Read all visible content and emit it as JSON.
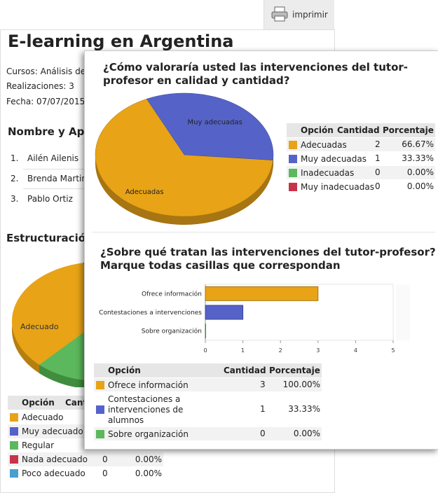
{
  "toolbar": {
    "print": "imprimir"
  },
  "report": {
    "title": "E-learning en Argentina",
    "meta": [
      "Cursos: Análisis de",
      "Realizaciones: 3",
      "Fecha: 07/07/2015"
    ],
    "participants_heading": "Nombre y Ape",
    "participants": [
      {
        "number": "1.",
        "name": "Ailén Ailenis"
      },
      {
        "number": "2.",
        "name": "Brenda Martine"
      },
      {
        "number": "3.",
        "name": "Pablo Ortiz"
      }
    ],
    "section_heading": "Estructuración",
    "pie_label": "Adecuado",
    "table": {
      "header": [
        "Opción",
        "Cant"
      ],
      "rows": [
        {
          "label": "Adecuado",
          "color": "#e8a317"
        },
        {
          "label": "Muy adecuado",
          "color": "#5563c8"
        },
        {
          "label": "Regular",
          "color": "#5cb85c"
        },
        {
          "label": "Nada adecuado",
          "count": 0,
          "percent": "0.00%",
          "color": "#c8334a"
        },
        {
          "label": "Poco adecuado",
          "count": 0,
          "percent": "0.00%",
          "color": "#4a9fd0"
        }
      ]
    }
  },
  "popup": {
    "questions": [
      {
        "title": "¿Cómo valoraría usted las intervenciones del tutor-profesor en calidad y cantidad?",
        "chart": {
          "type": "pie"
        },
        "table": {
          "header": [
            "Opción",
            "Cantidad",
            "Porcentaje"
          ],
          "rows": [
            {
              "label": "Adecuadas",
              "count": 2,
              "percent": "66.67%",
              "color": "#e8a317"
            },
            {
              "label": "Muy adecuadas",
              "count": 1,
              "percent": "33.33%",
              "color": "#5563c8"
            },
            {
              "label": "Inadecuadas",
              "count": 0,
              "percent": "0.00%",
              "color": "#5cb85c"
            },
            {
              "label": "Muy inadecuadas",
              "count": 0,
              "percent": "0.00%",
              "color": "#c8334a"
            }
          ]
        }
      },
      {
        "title": "¿Sobre qué tratan las intervenciones del tutor-profesor? Marque todas casillas que correspondan",
        "chart": {
          "type": "bar",
          "categories": [
            "Ofrece información",
            "Contestaciones a intervenciones",
            "Sobre organización"
          ],
          "xlim": [
            0,
            5
          ],
          "xticks": [
            0,
            1,
            2,
            3,
            4,
            5
          ]
        },
        "table": {
          "header": [
            "Opción",
            "Cantidad",
            "Porcentaje"
          ],
          "rows": [
            {
              "label": "Ofrece información",
              "count": 3,
              "percent": "100.00%",
              "color": "#e8a317"
            },
            {
              "label": "Contestaciones a intervenciones de alumnos",
              "count": 1,
              "percent": "33.33%",
              "color": "#5563c8"
            },
            {
              "label": "Sobre organización",
              "count": 0,
              "percent": "0.00%",
              "color": "#5cb85c"
            }
          ]
        }
      }
    ]
  }
}
